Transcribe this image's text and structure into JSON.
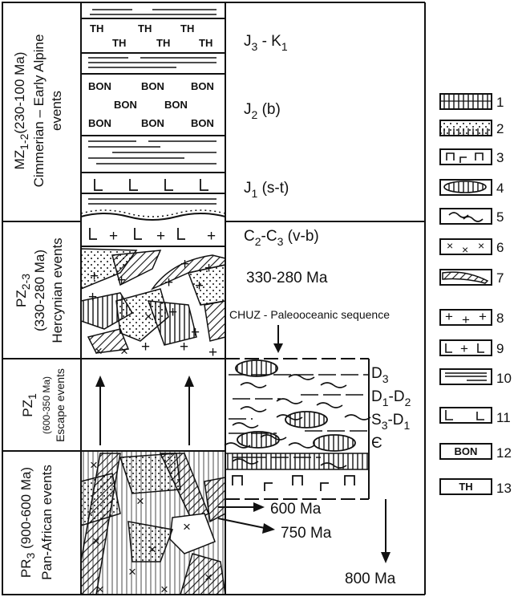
{
  "eras": [
    {
      "main": "MZ",
      "sub": "1-2",
      "lines": [
        "(230-100 Ma)",
        "Cimmerian – Early Alpine",
        "events"
      ]
    },
    {
      "main": "PZ",
      "sub": "2-3",
      "lines": [
        "(330-280 Ma)",
        "Hercynian events"
      ]
    },
    {
      "main": "PZ",
      "sub": "1",
      "lines": [
        "(600-350 Ma)",
        "Escape events"
      ]
    },
    {
      "main": "PR",
      "sub": "3",
      "lines": [
        "(900-600 Ma)",
        "Pan-African events"
      ]
    }
  ],
  "column_labels": [
    {
      "main": "J",
      "sub": "3",
      "rest": " - K",
      "sub2": "1"
    },
    {
      "main": "J",
      "sub": "2",
      "rest": " (b)"
    },
    {
      "main": "J",
      "sub": "1",
      "rest": " (s-t)"
    },
    {
      "main": "C",
      "sub": "2",
      "rest": "-C",
      "sub2": "3",
      "rest2": " (v-b)"
    },
    {
      "text": "330-280 Ma"
    }
  ],
  "chuz_label": "CHUZ - Paleooceanic sequence",
  "chuz_ages": [
    {
      "main": "D",
      "sub": "3"
    },
    {
      "main": "D",
      "sub": "1",
      "rest": "-D",
      "sub2": "2"
    },
    {
      "main": "S",
      "sub": "3",
      "rest": "-D",
      "sub2": "1"
    },
    {
      "main": "Є"
    }
  ],
  "ages": [
    "600 Ma",
    "750 Ma",
    "800 Ma"
  ],
  "pattern_text": {
    "th": "TH",
    "bon": "BON"
  },
  "legend": [
    {
      "num": "1"
    },
    {
      "num": "2"
    },
    {
      "num": "3"
    },
    {
      "num": "4"
    },
    {
      "num": "5"
    },
    {
      "num": "6"
    },
    {
      "num": "7"
    },
    {
      "num": "8"
    },
    {
      "num": "9"
    },
    {
      "num": "10"
    },
    {
      "num": "11"
    },
    {
      "num": "12",
      "text": "BON"
    },
    {
      "num": "13",
      "text": "TH"
    }
  ]
}
